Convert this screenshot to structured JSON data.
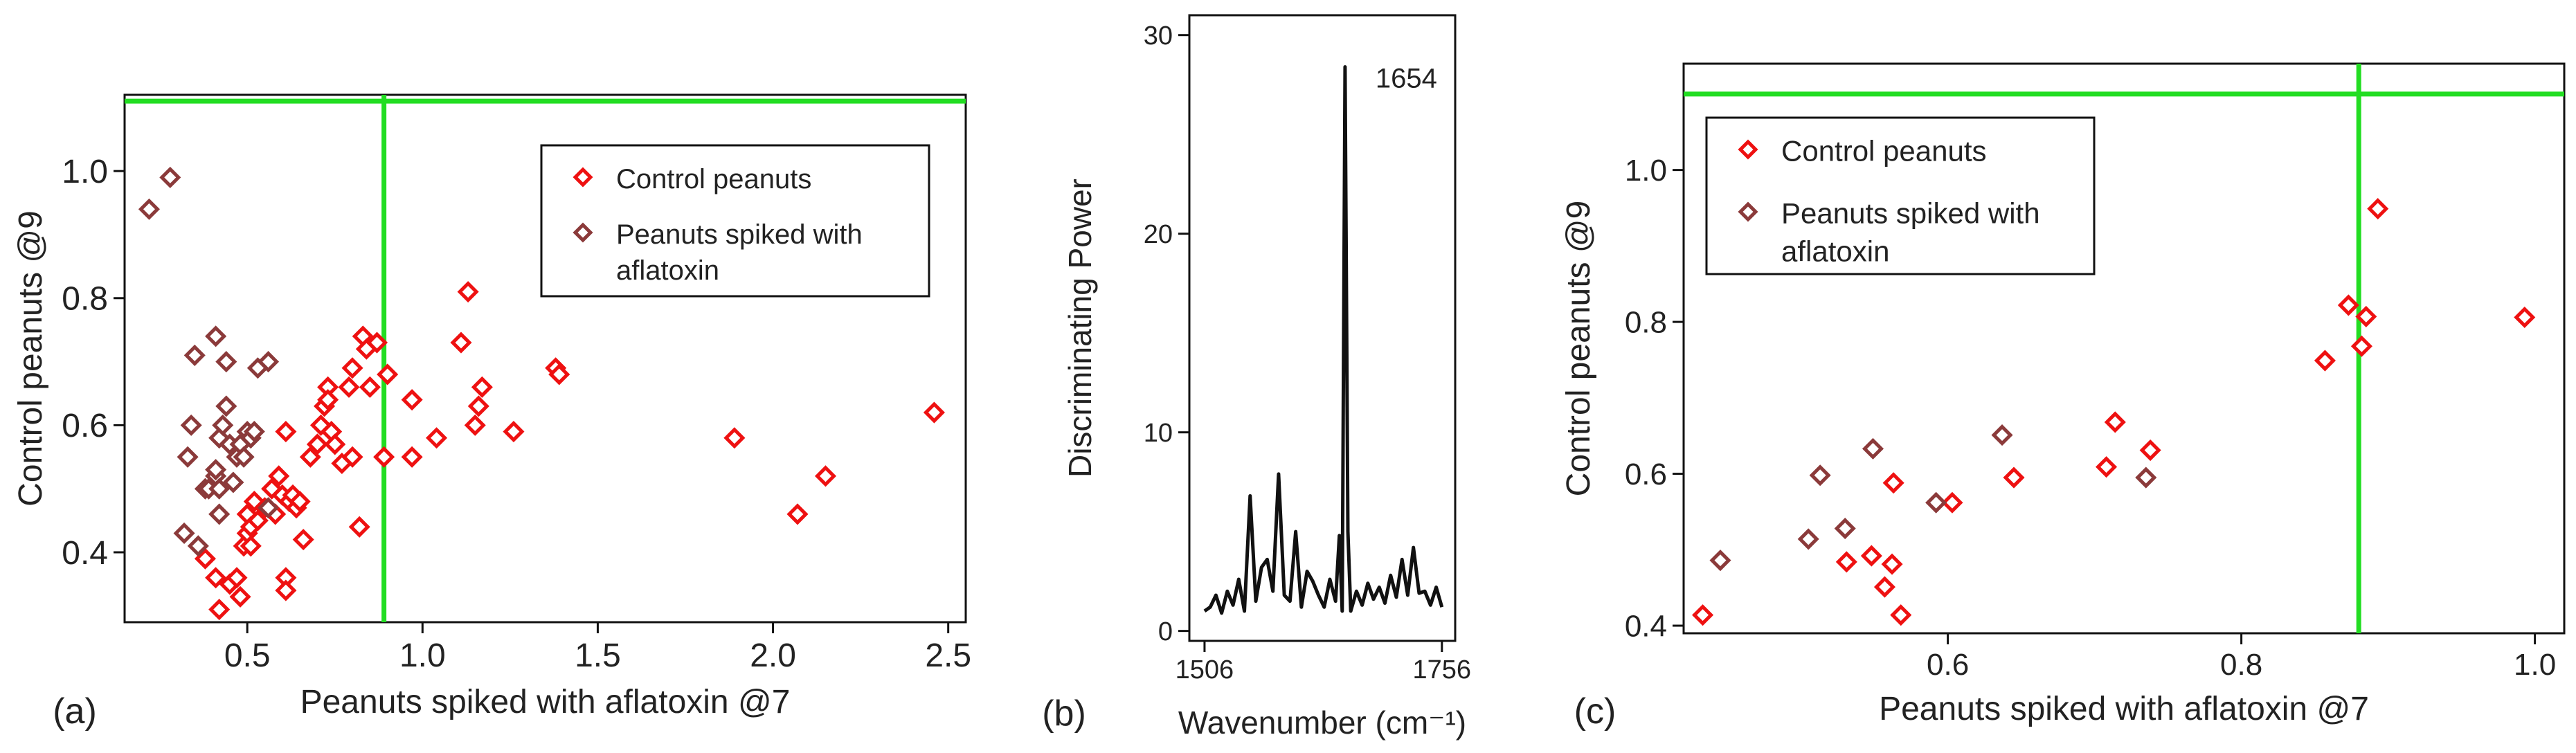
{
  "chart_data": [
    {
      "panel_label": "(a)",
      "type": "scatter",
      "xlabel": "Peanuts spiked with aflatoxin @7",
      "ylabel": "Control peanuts @9",
      "xlim": [
        0.15,
        2.55
      ],
      "ylim": [
        0.29,
        1.12
      ],
      "xticks": [
        0.5,
        1.0,
        1.5,
        2.0,
        2.5
      ],
      "xtick_labels": [
        "0.5",
        "1.0",
        "1.5",
        "2.0",
        "2.5"
      ],
      "yticks": [
        0.4,
        0.6,
        0.8,
        1.0
      ],
      "ytick_labels": [
        "0.4",
        "0.6",
        "0.8",
        "1.0"
      ],
      "threshold_lines": {
        "x": 0.89,
        "y": 1.11,
        "color": "#22dd22"
      },
      "legend_position": "top-right",
      "series": [
        {
          "name": "Control peanuts",
          "color": "#ee1111",
          "marker": "diamond-open",
          "points": [
            [
              0.38,
              0.39
            ],
            [
              0.41,
              0.36
            ],
            [
              0.42,
              0.31
            ],
            [
              0.45,
              0.35
            ],
            [
              0.47,
              0.36
            ],
            [
              0.48,
              0.33
            ],
            [
              0.49,
              0.41
            ],
            [
              0.5,
              0.43
            ],
            [
              0.5,
              0.46
            ],
            [
              0.51,
              0.44
            ],
            [
              0.51,
              0.41
            ],
            [
              0.52,
              0.48
            ],
            [
              0.53,
              0.45
            ],
            [
              0.55,
              0.47
            ],
            [
              0.57,
              0.5
            ],
            [
              0.58,
              0.46
            ],
            [
              0.59,
              0.52
            ],
            [
              0.6,
              0.49
            ],
            [
              0.61,
              0.36
            ],
            [
              0.61,
              0.34
            ],
            [
              0.62,
              0.48
            ],
            [
              0.63,
              0.49
            ],
            [
              0.64,
              0.47
            ],
            [
              0.65,
              0.48
            ],
            [
              0.61,
              0.59
            ],
            [
              0.66,
              0.42
            ],
            [
              0.68,
              0.55
            ],
            [
              0.7,
              0.57
            ],
            [
              0.71,
              0.6
            ],
            [
              0.72,
              0.63
            ],
            [
              0.73,
              0.66
            ],
            [
              0.73,
              0.64
            ],
            [
              0.74,
              0.59
            ],
            [
              0.75,
              0.57
            ],
            [
              0.77,
              0.54
            ],
            [
              0.79,
              0.66
            ],
            [
              0.8,
              0.55
            ],
            [
              0.8,
              0.69
            ],
            [
              0.83,
              0.74
            ],
            [
              0.84,
              0.72
            ],
            [
              0.85,
              0.66
            ],
            [
              0.87,
              0.73
            ],
            [
              0.82,
              0.44
            ],
            [
              0.89,
              0.55
            ],
            [
              0.9,
              0.68
            ],
            [
              0.97,
              0.64
            ],
            [
              0.97,
              0.55
            ],
            [
              1.04,
              0.58
            ],
            [
              1.11,
              0.73
            ],
            [
              1.13,
              0.81
            ],
            [
              1.15,
              0.6
            ],
            [
              1.16,
              0.63
            ],
            [
              1.17,
              0.66
            ],
            [
              1.26,
              0.59
            ],
            [
              1.38,
              0.69
            ],
            [
              1.39,
              0.68
            ],
            [
              1.89,
              0.58
            ],
            [
              2.07,
              0.46
            ],
            [
              2.15,
              0.52
            ],
            [
              2.46,
              0.62
            ]
          ]
        },
        {
          "name": "Peanuts spiked with aflatoxin",
          "color": "#8b3a3a",
          "marker": "diamond-open",
          "points": [
            [
              0.22,
              0.94
            ],
            [
              0.28,
              0.99
            ],
            [
              0.32,
              0.43
            ],
            [
              0.33,
              0.55
            ],
            [
              0.34,
              0.6
            ],
            [
              0.35,
              0.71
            ],
            [
              0.36,
              0.41
            ],
            [
              0.38,
              0.5
            ],
            [
              0.39,
              0.5
            ],
            [
              0.41,
              0.52
            ],
            [
              0.41,
              0.74
            ],
            [
              0.41,
              0.53
            ],
            [
              0.42,
              0.58
            ],
            [
              0.42,
              0.46
            ],
            [
              0.43,
              0.6
            ],
            [
              0.44,
              0.7
            ],
            [
              0.44,
              0.63
            ],
            [
              0.45,
              0.57
            ],
            [
              0.46,
              0.51
            ],
            [
              0.47,
              0.55
            ],
            [
              0.48,
              0.57
            ],
            [
              0.49,
              0.55
            ],
            [
              0.5,
              0.59
            ],
            [
              0.51,
              0.58
            ],
            [
              0.52,
              0.59
            ],
            [
              0.53,
              0.69
            ],
            [
              0.56,
              0.7
            ],
            [
              0.56,
              0.47
            ],
            [
              0.42,
              0.5
            ]
          ]
        }
      ]
    },
    {
      "panel_label": "(b)",
      "type": "line",
      "xlabel": "Wavenumber (cm⁻¹)",
      "ylabel": "Discriminating Power",
      "xlim": [
        1490,
        1770
      ],
      "ylim": [
        -0.5,
        31
      ],
      "xticks": [
        1506,
        1756
      ],
      "xtick_labels": [
        "1506",
        "1756"
      ],
      "yticks": [
        0,
        10,
        20,
        30
      ],
      "ytick_labels": [
        "0",
        "10",
        "20",
        "30"
      ],
      "peak_annotation": {
        "text": "1654",
        "x": 1654,
        "y": 28.4
      },
      "series": [
        {
          "name": "Discriminating Power",
          "color": "#111111",
          "x": [
            1506,
            1512,
            1518,
            1524,
            1530,
            1536,
            1542,
            1548,
            1554,
            1560,
            1566,
            1572,
            1578,
            1584,
            1590,
            1596,
            1602,
            1608,
            1614,
            1620,
            1626,
            1632,
            1638,
            1644,
            1648,
            1651,
            1654,
            1657,
            1660,
            1666,
            1672,
            1678,
            1684,
            1690,
            1696,
            1702,
            1708,
            1714,
            1720,
            1726,
            1732,
            1738,
            1744,
            1750,
            1756
          ],
          "y": [
            1.0,
            1.2,
            1.8,
            0.9,
            2.0,
            1.3,
            2.6,
            1.0,
            6.8,
            1.5,
            3.2,
            3.6,
            2.0,
            7.9,
            1.8,
            1.5,
            5.0,
            1.2,
            3.0,
            2.5,
            1.8,
            1.2,
            2.6,
            1.5,
            4.8,
            1.0,
            28.4,
            5.0,
            1.0,
            2.0,
            1.3,
            2.4,
            1.6,
            2.2,
            1.4,
            2.8,
            1.7,
            3.6,
            1.8,
            4.2,
            1.9,
            2.0,
            1.3,
            2.2,
            1.2
          ]
        }
      ]
    },
    {
      "panel_label": "(c)",
      "type": "scatter",
      "xlabel": "Peanuts spiked with aflatoxin @7",
      "ylabel": "Control peanuts @9",
      "xlim": [
        0.42,
        1.02
      ],
      "ylim": [
        0.39,
        1.14
      ],
      "xticks": [
        0.6,
        0.8,
        1.0
      ],
      "xtick_labels": [
        "0.6",
        "0.8",
        "1.0"
      ],
      "yticks": [
        0.4,
        0.6,
        0.8,
        1.0
      ],
      "ytick_labels": [
        "0.4",
        "0.6",
        "0.8",
        "1.0"
      ],
      "threshold_lines": {
        "x": 0.88,
        "y": 1.1,
        "color": "#22dd22"
      },
      "legend_position": "top-left",
      "series": [
        {
          "name": "Control peanuts",
          "color": "#ee1111",
          "marker": "diamond-open",
          "points": [
            [
              0.433,
              0.414
            ],
            [
              0.531,
              0.484
            ],
            [
              0.548,
              0.492
            ],
            [
              0.557,
              0.451
            ],
            [
              0.562,
              0.481
            ],
            [
              0.563,
              0.588
            ],
            [
              0.568,
              0.414
            ],
            [
              0.603,
              0.562
            ],
            [
              0.645,
              0.595
            ],
            [
              0.708,
              0.609
            ],
            [
              0.714,
              0.668
            ],
            [
              0.738,
              0.631
            ],
            [
              0.857,
              0.749
            ],
            [
              0.873,
              0.822
            ],
            [
              0.882,
              0.768
            ],
            [
              0.885,
              0.807
            ],
            [
              0.893,
              0.949
            ],
            [
              0.993,
              0.806
            ]
          ]
        },
        {
          "name": "Peanuts spiked with aflatoxin",
          "color": "#8b3a3a",
          "marker": "diamond-open",
          "points": [
            [
              0.445,
              0.486
            ],
            [
              0.505,
              0.514
            ],
            [
              0.513,
              0.598
            ],
            [
              0.53,
              0.528
            ],
            [
              0.549,
              0.633
            ],
            [
              0.592,
              0.562
            ],
            [
              0.637,
              0.651
            ],
            [
              0.735,
              0.595
            ]
          ]
        }
      ]
    }
  ]
}
